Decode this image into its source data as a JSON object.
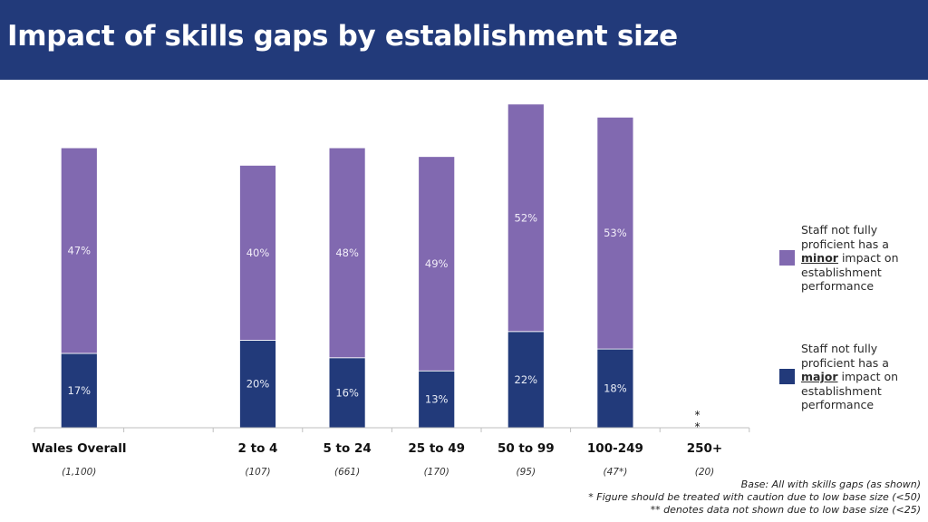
{
  "title": "Impact of skills gaps by establishment size",
  "chart_data": {
    "type": "bar",
    "stacked": true,
    "title": "Impact of skills gaps by establishment size",
    "categories": [
      "Wales Overall",
      "",
      "2 to 4",
      "5 to 24",
      "25 to 49",
      "50 to 99",
      "100-249",
      "250+"
    ],
    "base_sizes": [
      "(1,100)",
      "",
      "(107)",
      "(661)",
      "(170)",
      "(95)",
      "(47*)",
      "(20)"
    ],
    "series": [
      {
        "name": "major",
        "color": "#223a7a",
        "label_color": "#e8ecf6",
        "values": [
          17,
          null,
          20,
          16,
          13,
          22,
          18,
          null
        ],
        "labels": [
          "17%",
          "",
          "20%",
          "16%",
          "13%",
          "22%",
          "18%",
          ""
        ]
      },
      {
        "name": "minor",
        "color": "#8169b0",
        "label_color": "#f1edf8",
        "values": [
          47,
          null,
          40,
          48,
          49,
          52,
          53,
          null
        ],
        "labels": [
          "47%",
          "",
          "40%",
          "48%",
          "49%",
          "52%",
          "53%",
          ""
        ]
      }
    ],
    "suppressed_marker": "**",
    "suppressed_index": 7,
    "ylim": [
      0,
      75
    ],
    "xlabel": "",
    "ylabel": ""
  },
  "legend": {
    "minor": {
      "pre": "Staff not fully proficient has a ",
      "key": "minor",
      "post": " impact on establishment performance",
      "color": "#8169b0"
    },
    "major": {
      "pre": "Staff not fully proficient has a ",
      "key": "major",
      "post": " impact on establishment performance",
      "color": "#223a7a"
    }
  },
  "footnotes": [
    "Base: All with skills gaps (as shown)",
    "* Figure should be treated with caution due to low base size (<50)",
    "** denotes data not shown due to low base size (<25)"
  ]
}
